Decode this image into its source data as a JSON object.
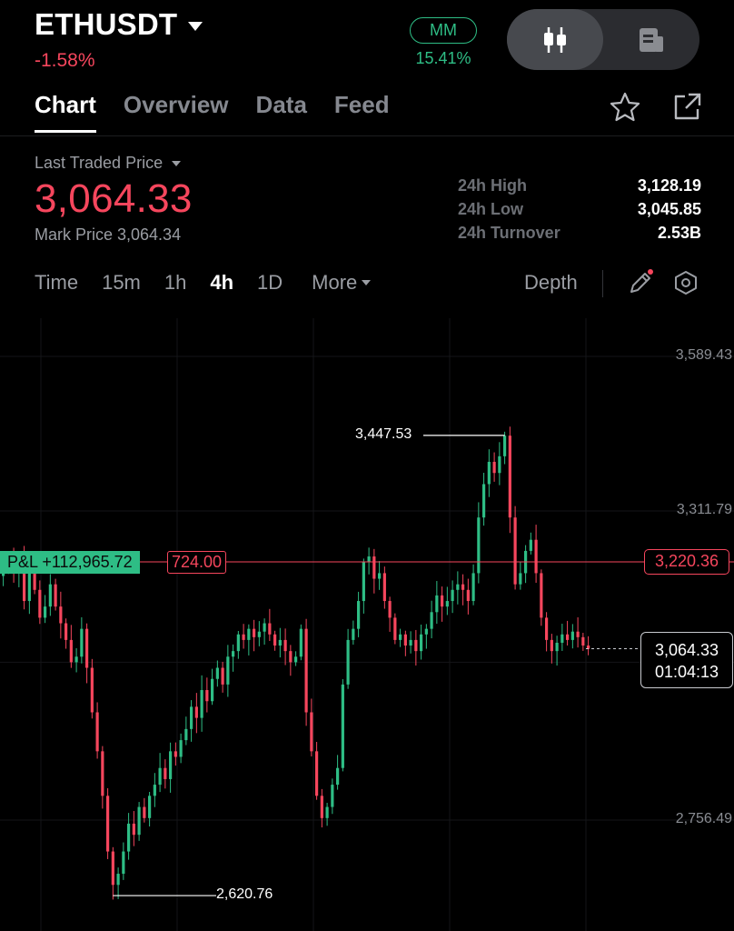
{
  "header": {
    "symbol": "ETHUSDT",
    "change": "-1.58%",
    "mm_label": "MM",
    "mm_value": "15.41%"
  },
  "tabs": [
    {
      "label": "Chart",
      "active": true
    },
    {
      "label": "Overview",
      "active": false
    },
    {
      "label": "Data",
      "active": false
    },
    {
      "label": "Feed",
      "active": false
    }
  ],
  "price": {
    "ltp_label": "Last Traded Price",
    "ltp": "3,064.33",
    "mark_price_text": "Mark Price 3,064.34"
  },
  "stats": [
    {
      "label": "24h High",
      "value": "3,128.19"
    },
    {
      "label": "24h Low",
      "value": "3,045.85"
    },
    {
      "label": "24h Turnover",
      "value": "2.53B"
    }
  ],
  "timeframes": {
    "items": [
      "Time",
      "15m",
      "1h",
      "4h",
      "1D"
    ],
    "active": "4h",
    "more_label": "More",
    "depth_label": "Depth"
  },
  "colors": {
    "up": "#2ebd85",
    "down": "#f6465d",
    "background": "#000000",
    "grid": "#141518"
  },
  "chart_overlay": {
    "pl_label": "P&L +112,965.72",
    "entry_value": "724.00",
    "mark_value": "3,220.36",
    "last_price": "3,064.33",
    "countdown": "01:04:13",
    "high_label": "3,447.53",
    "low_label": "2,620.76"
  },
  "chart_data": {
    "type": "candlestick",
    "timeframe": "4h",
    "y_ticks": [
      3589.43,
      3311.79,
      2756.49
    ],
    "y_tick_labels": [
      "3,589.43",
      "3,311.79",
      "2,756.49"
    ],
    "ylim": [
      2560,
      3700
    ],
    "grid": true,
    "annotations": {
      "high": 3447.53,
      "low": 2620.76,
      "position_line": 3220.36,
      "last": 3064.33
    },
    "close_path": [
      3210,
      3230,
      3200,
      3230,
      3150,
      3200,
      3170,
      3120,
      3140,
      3180,
      3140,
      3110,
      3080,
      3040,
      3050,
      3100,
      3030,
      2950,
      2880,
      2800,
      2700,
      2640,
      2660,
      2700,
      2750,
      2730,
      2780,
      2760,
      2800,
      2820,
      2850,
      2830,
      2880,
      2870,
      2900,
      2920,
      2960,
      2940,
      2990,
      2970,
      3010,
      3030,
      3000,
      3050,
      3060,
      3090,
      3080,
      3100,
      3085,
      3095,
      3110,
      3090,
      3070,
      3080,
      3060,
      3040,
      3050,
      3100,
      2950,
      2880,
      2800,
      2760,
      2780,
      2820,
      2850,
      3000,
      3080,
      3100,
      3150,
      3220,
      3230,
      3190,
      3200,
      3150,
      3120,
      3080,
      3090,
      3070,
      3080,
      3060,
      3090,
      3100,
      3130,
      3160,
      3140,
      3150,
      3170,
      3180,
      3170,
      3150,
      3200,
      3300,
      3360,
      3400,
      3380,
      3410,
      3447,
      3300,
      3180,
      3200,
      3240,
      3260,
      3200,
      3120,
      3080,
      3060,
      3075,
      3090,
      3080,
      3095,
      3085,
      3070,
      3064
    ]
  }
}
